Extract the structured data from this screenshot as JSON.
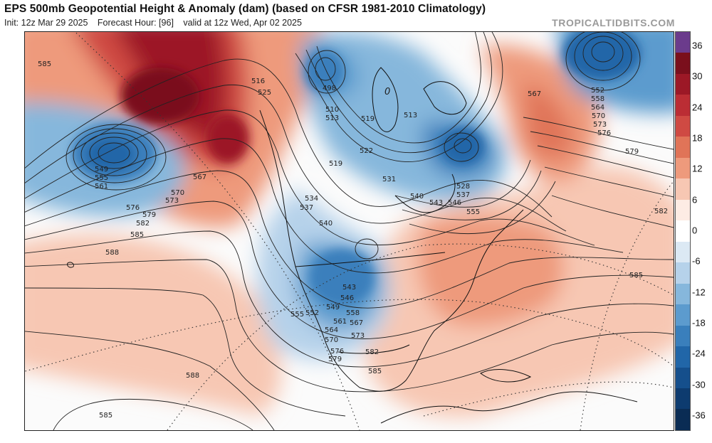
{
  "header": {
    "title": "EPS 500mb Geopotential Height & Anomaly (dam) (based on CFSR 1981-2010 Climatology)",
    "init": "Init: 12z Mar 29 2025",
    "forecast_hour": "Forecast Hour: [96]",
    "valid": "valid at 12z Wed, Apr 02 2025",
    "brand": "TROPICALTIDBITS.COM"
  },
  "colorbar": {
    "labels": [
      "36",
      "30",
      "24",
      "18",
      "12",
      "6",
      "0",
      "-6",
      "-12",
      "-18",
      "-24",
      "-30",
      "-36"
    ],
    "colors": [
      "#6b3b8c",
      "#7a0f1c",
      "#9c1826",
      "#bb2d34",
      "#cf4a43",
      "#e07458",
      "#ee9a7c",
      "#f7c7b3",
      "#fdece4",
      "#ffffff",
      "#dce9f4",
      "#b6d2ea",
      "#86b7dc",
      "#5c9bce",
      "#3a7fbc",
      "#2166a8",
      "#154f8c",
      "#0d3b6f",
      "#0a2c54"
    ]
  },
  "contour_labels": [
    {
      "text": "585",
      "id": "l1"
    },
    {
      "text": "498",
      "id": "l2"
    },
    {
      "text": "516",
      "id": "l3"
    },
    {
      "text": "525",
      "id": "l4"
    },
    {
      "text": "510",
      "id": "l5"
    },
    {
      "text": "513",
      "id": "l6"
    },
    {
      "text": "519",
      "id": "l7"
    },
    {
      "text": "522",
      "id": "l8"
    },
    {
      "text": "0",
      "id": "l9"
    },
    {
      "text": "513",
      "id": "l10"
    },
    {
      "text": "519",
      "id": "l11"
    },
    {
      "text": "531",
      "id": "l12"
    },
    {
      "text": "534",
      "id": "l13"
    },
    {
      "text": "537",
      "id": "l14"
    },
    {
      "text": "540",
      "id": "l15"
    },
    {
      "text": "540",
      "id": "l16"
    },
    {
      "text": "543",
      "id": "l17"
    },
    {
      "text": "546",
      "id": "l18"
    },
    {
      "text": "528",
      "id": "l19"
    },
    {
      "text": "537",
      "id": "l20"
    },
    {
      "text": "555",
      "id": "l21"
    },
    {
      "text": "549",
      "id": "l22"
    },
    {
      "text": "555",
      "id": "l23"
    },
    {
      "text": "561",
      "id": "l24"
    },
    {
      "text": "567",
      "id": "l25"
    },
    {
      "text": "570",
      "id": "l26"
    },
    {
      "text": "573",
      "id": "l27"
    },
    {
      "text": "576",
      "id": "l28"
    },
    {
      "text": "579",
      "id": "l29"
    },
    {
      "text": "582",
      "id": "l30"
    },
    {
      "text": "585",
      "id": "l31"
    },
    {
      "text": "588",
      "id": "l32"
    },
    {
      "text": "543",
      "id": "l33"
    },
    {
      "text": "546",
      "id": "l34"
    },
    {
      "text": "549",
      "id": "l35"
    },
    {
      "text": "552",
      "id": "l36"
    },
    {
      "text": "555",
      "id": "l37"
    },
    {
      "text": "558",
      "id": "l38"
    },
    {
      "text": "561",
      "id": "l39"
    },
    {
      "text": "564",
      "id": "l40"
    },
    {
      "text": "567",
      "id": "l41"
    },
    {
      "text": "570",
      "id": "l42"
    },
    {
      "text": "573",
      "id": "l43"
    },
    {
      "text": "576",
      "id": "l44"
    },
    {
      "text": "579",
      "id": "l45"
    },
    {
      "text": "582",
      "id": "l46"
    },
    {
      "text": "585",
      "id": "l47"
    },
    {
      "text": "588",
      "id": "l48"
    },
    {
      "text": "567",
      "id": "l49"
    },
    {
      "text": "570",
      "id": "l50"
    },
    {
      "text": "573",
      "id": "l51"
    },
    {
      "text": "576",
      "id": "l52"
    },
    {
      "text": "579",
      "id": "l53"
    },
    {
      "text": "582",
      "id": "l54"
    },
    {
      "text": "585",
      "id": "l55"
    },
    {
      "text": "552",
      "id": "l56"
    },
    {
      "text": "558",
      "id": "l57"
    },
    {
      "text": "564",
      "id": "l58"
    },
    {
      "text": "585",
      "id": "l59"
    }
  ]
}
